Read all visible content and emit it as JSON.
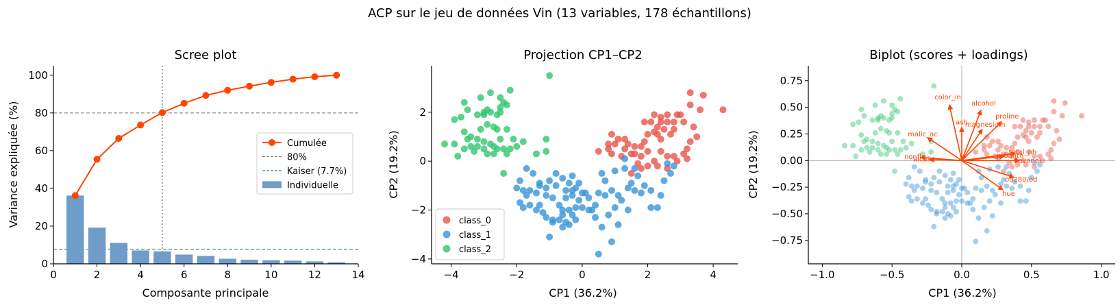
{
  "suptitle": "ACP sur le jeu de données Vin (13 variables, 178 échantillons)",
  "colors": {
    "cumul": "#FF4500",
    "bar": "#6F9CC8",
    "threshold": "#808080",
    "kaiser": "#2E8B57",
    "class_0": "#E8554A",
    "class_1": "#3A95D8",
    "class_2": "#33C56F",
    "arrow": "#FF4500"
  },
  "chart_data": [
    {
      "type": "bar",
      "title": "Scree plot",
      "xlabel": "Composante principale",
      "ylabel": "Variance expliquée (%)",
      "xlim": [
        0,
        14
      ],
      "ylim": [
        0,
        105
      ],
      "xticks": [
        "0",
        "2",
        "4",
        "6",
        "8",
        "10",
        "12",
        "14"
      ],
      "yticks": [
        "0",
        "20",
        "40",
        "60",
        "80",
        "100"
      ],
      "categories": [
        1,
        2,
        3,
        4,
        5,
        6,
        7,
        8,
        9,
        10,
        11,
        12,
        13
      ],
      "series": [
        {
          "name": "Individuelle",
          "kind": "bar",
          "values": [
            36.2,
            19.2,
            11.1,
            7.1,
            6.6,
            4.9,
            4.2,
            2.7,
            2.2,
            1.9,
            1.7,
            1.3,
            0.8
          ]
        },
        {
          "name": "Cumulée",
          "kind": "line",
          "values": [
            36.2,
            55.4,
            66.5,
            73.6,
            80.2,
            85.1,
            89.3,
            92.0,
            94.2,
            96.2,
            97.9,
            99.2,
            100.0
          ]
        }
      ],
      "hlines": [
        {
          "name": "80%",
          "y": 80
        },
        {
          "name": "Kaiser (7.7%)",
          "y": 7.7
        }
      ],
      "vline": {
        "x": 5
      },
      "legend": {
        "position": "center-right",
        "entries": [
          "Cumulée",
          "80%",
          "Kaiser (7.7%)",
          "Individuelle"
        ]
      }
    },
    {
      "type": "scatter",
      "title": "Projection CP1–CP2",
      "xlabel": "CP1 (36.2%)",
      "ylabel": "CP2 (19.2%)",
      "xlim": [
        -4.6,
        4.75
      ],
      "ylim": [
        -4.2,
        3.9
      ],
      "xticks": [
        "−4",
        "−2",
        "0",
        "2",
        "4"
      ],
      "yticks": [
        "−4",
        "−2",
        "0",
        "2"
      ],
      "legend": {
        "position": "lower-left",
        "entries": [
          "class_0",
          "class_1",
          "class_2"
        ]
      },
      "series": [
        {
          "name": "class_0",
          "points": [
            [
              3.3,
              2.8
            ],
            [
              3.7,
              2.7
            ],
            [
              4.3,
              2.1
            ],
            [
              3.6,
              2.1
            ],
            [
              3.3,
              2.3
            ],
            [
              3.0,
              1.9
            ],
            [
              3.1,
              1.6
            ],
            [
              2.9,
              1.9
            ],
            [
              2.6,
              1.9
            ],
            [
              2.6,
              1.6
            ],
            [
              2.4,
              1.8
            ],
            [
              2.2,
              1.9
            ],
            [
              2.1,
              1.6
            ],
            [
              1.9,
              1.6
            ],
            [
              2.3,
              1.4
            ],
            [
              2.5,
              1.3
            ],
            [
              2.7,
              1.1
            ],
            [
              2.8,
              1.3
            ],
            [
              3.4,
              1.4
            ],
            [
              3.5,
              1.0
            ],
            [
              3.3,
              0.8
            ],
            [
              3.2,
              0.5
            ],
            [
              3.1,
              0.3
            ],
            [
              3.2,
              0.1
            ],
            [
              2.8,
              0.2
            ],
            [
              2.6,
              0.2
            ],
            [
              2.4,
              0.4
            ],
            [
              2.4,
              0.9
            ],
            [
              2.2,
              1.2
            ],
            [
              2.0,
              1.1
            ],
            [
              1.9,
              0.8
            ],
            [
              1.8,
              0.6
            ],
            [
              1.8,
              0.2
            ],
            [
              1.6,
              0.6
            ],
            [
              1.4,
              0.7
            ],
            [
              1.3,
              0.9
            ],
            [
              1.1,
              0.9
            ],
            [
              1.0,
              0.7
            ],
            [
              0.9,
              1.1
            ],
            [
              0.8,
              0.7
            ],
            [
              0.8,
              0.5
            ],
            [
              0.5,
              0.4
            ],
            [
              1.3,
              0.5
            ],
            [
              1.5,
              0.3
            ],
            [
              1.7,
              -0.1
            ],
            [
              2.0,
              -0.2
            ],
            [
              2.2,
              0.0
            ],
            [
              2.3,
              -0.2
            ],
            [
              2.6,
              -0.3
            ],
            [
              2.9,
              0.0
            ],
            [
              2.0,
              0.4
            ],
            [
              2.3,
              1.1
            ],
            [
              2.8,
              1.6
            ],
            [
              2.4,
              1.6
            ],
            [
              1.6,
              0.3
            ],
            [
              1.2,
              0.2
            ],
            [
              0.9,
              0.3
            ],
            [
              1.5,
              -0.5
            ],
            [
              1.8,
              -0.3
            ]
          ]
        },
        {
          "name": "class_1",
          "points": [
            [
              -1.0,
              -0.8
            ],
            [
              -0.8,
              -0.5
            ],
            [
              -0.6,
              -0.7
            ],
            [
              -0.4,
              -0.9
            ],
            [
              -0.2,
              -1.1
            ],
            [
              -0.3,
              -1.2
            ],
            [
              -0.5,
              -1.2
            ],
            [
              -0.8,
              -1.0
            ],
            [
              -1.1,
              -1.1
            ],
            [
              -1.3,
              -1.0
            ],
            [
              -1.4,
              -1.3
            ],
            [
              -1.6,
              -1.2
            ],
            [
              -1.7,
              -1.4
            ],
            [
              -1.8,
              -1.2
            ],
            [
              -1.9,
              -0.8
            ],
            [
              -2.0,
              -1.1
            ],
            [
              -1.9,
              -1.7
            ],
            [
              -1.8,
              -1.9
            ],
            [
              -1.6,
              -1.8
            ],
            [
              -1.4,
              -2.0
            ],
            [
              -1.3,
              -1.8
            ],
            [
              -1.2,
              -2.1
            ],
            [
              -1.1,
              -2.3
            ],
            [
              -0.9,
              -2.4
            ],
            [
              -0.7,
              -2.4
            ],
            [
              -0.5,
              -2.5
            ],
            [
              -0.6,
              -2.7
            ],
            [
              -0.4,
              -2.6
            ],
            [
              -0.3,
              -2.2
            ],
            [
              -0.2,
              -1.9
            ],
            [
              0.0,
              -1.9
            ],
            [
              0.2,
              -2.0
            ],
            [
              0.4,
              -1.8
            ],
            [
              0.5,
              -1.3
            ],
            [
              0.7,
              -1.4
            ],
            [
              0.9,
              -1.2
            ],
            [
              1.1,
              -1.4
            ],
            [
              1.2,
              -1.6
            ],
            [
              1.0,
              -1.9
            ],
            [
              0.8,
              -2.2
            ],
            [
              1.1,
              -2.6
            ],
            [
              0.9,
              -3.3
            ],
            [
              0.5,
              -3.8
            ],
            [
              0.3,
              -2.0
            ],
            [
              0.1,
              -1.3
            ],
            [
              -0.3,
              -0.6
            ],
            [
              -1.0,
              -3.1
            ],
            [
              -0.9,
              -2.5
            ],
            [
              -0.6,
              -2.2
            ],
            [
              -0.4,
              -2.0
            ],
            [
              -0.6,
              -2.0
            ],
            [
              -0.7,
              -1.8
            ],
            [
              -0.5,
              -1.5
            ],
            [
              -0.9,
              -1.5
            ],
            [
              1.4,
              -1.1
            ],
            [
              1.6,
              -1.2
            ],
            [
              1.8,
              -1.3
            ],
            [
              1.5,
              -0.9
            ],
            [
              1.7,
              -0.6
            ],
            [
              1.9,
              -1.0
            ],
            [
              2.1,
              -1.2
            ],
            [
              2.4,
              -1.4
            ],
            [
              2.5,
              -0.8
            ],
            [
              2.7,
              -0.5
            ],
            [
              2.6,
              -0.1
            ],
            [
              2.8,
              -0.2
            ],
            [
              2.1,
              -1.9
            ],
            [
              2.3,
              -1.9
            ],
            [
              1.4,
              -2.0
            ],
            [
              1.0,
              -0.4
            ],
            [
              1.3,
              -0.3
            ],
            [
              1.6,
              -0.3
            ],
            [
              -1.7,
              -0.3
            ],
            [
              -1.5,
              -0.5
            ],
            [
              -1.3,
              -0.9
            ],
            [
              -0.1,
              -1.6
            ],
            [
              0.2,
              -1.5
            ],
            [
              0.4,
              -2.3
            ],
            [
              -0.2,
              -2.4
            ],
            [
              0.6,
              -2.7
            ],
            [
              -0.3,
              -1.4
            ],
            [
              0.0,
              -1.3
            ],
            [
              0.7,
              -0.8
            ],
            [
              1.3,
              0.1
            ],
            [
              0.6,
              -0.5
            ],
            [
              -0.1,
              -0.9
            ],
            [
              -1.1,
              -1.4
            ]
          ]
        },
        {
          "name": "class_2",
          "points": [
            [
              -3.1,
              2.6
            ],
            [
              -2.8,
              2.8
            ],
            [
              -2.5,
              2.6
            ],
            [
              -2.2,
              2.9
            ],
            [
              -2.4,
              2.4
            ],
            [
              -2.3,
              2.3
            ],
            [
              -2.5,
              2.2
            ],
            [
              -2.6,
              1.9
            ],
            [
              -2.8,
              2.0
            ],
            [
              -2.9,
              2.1
            ],
            [
              -3.0,
              1.9
            ],
            [
              -3.2,
              1.9
            ],
            [
              -3.5,
              2.1
            ],
            [
              -3.6,
              2.4
            ],
            [
              -3.7,
              1.8
            ],
            [
              -3.9,
              1.7
            ],
            [
              -3.6,
              1.2
            ],
            [
              -3.4,
              1.0
            ],
            [
              -3.1,
              1.3
            ],
            [
              -2.9,
              1.5
            ],
            [
              -2.6,
              1.3
            ],
            [
              -2.3,
              1.3
            ],
            [
              -2.5,
              0.9
            ],
            [
              -2.8,
              0.7
            ],
            [
              -3.0,
              0.8
            ],
            [
              -3.2,
              0.6
            ],
            [
              -3.4,
              0.6
            ],
            [
              -3.6,
              0.5
            ],
            [
              -3.9,
              0.7
            ],
            [
              -4.2,
              0.7
            ],
            [
              -3.8,
              0.2
            ],
            [
              -3.3,
              0.4
            ],
            [
              -3.0,
              0.5
            ],
            [
              -2.7,
              0.3
            ],
            [
              -2.4,
              0.5
            ],
            [
              -2.3,
              0.3
            ],
            [
              -2.1,
              0.9
            ],
            [
              -2.2,
              0.5
            ],
            [
              -2.7,
              0.6
            ],
            [
              -2.0,
              0.6
            ],
            [
              -1.8,
              0.8
            ],
            [
              -1.4,
              0.3
            ],
            [
              -1.1,
              0.4
            ],
            [
              -1.1,
              0.9
            ],
            [
              -1.0,
              3.5
            ],
            [
              -2.4,
              -0.5
            ],
            [
              -3.2,
              0.9
            ],
            [
              -2.5,
              2.0
            ],
            [
              -3.0,
              2.0
            ],
            [
              -2.7,
              1.4
            ],
            [
              -3.5,
              0.9
            ],
            [
              -2.6,
              0.5
            ],
            [
              -2.9,
              0.3
            ]
          ]
        }
      ]
    },
    {
      "type": "scatter",
      "title": "Biplot (scores + loadings)",
      "xlabel": "CP1 (36.2%)",
      "ylabel": "CP2 (19.2%)",
      "xlim": [
        -1.1,
        1.1
      ],
      "ylim": [
        -0.97,
        0.89
      ],
      "xticks": [
        "−1.0",
        "−0.5",
        "0.0",
        "0.5",
        "1.0"
      ],
      "yticks": [
        "−0.75",
        "−0.50",
        "−0.25",
        "0.00",
        "0.25",
        "0.50",
        "0.75"
      ],
      "scores_scale": 0.2,
      "loadings": [
        {
          "name": "color_in",
          "x": -0.09,
          "y": 0.53
        },
        {
          "name": "alcohol",
          "x": 0.14,
          "y": 0.48
        },
        {
          "name": "proline",
          "x": 0.29,
          "y": 0.37
        },
        {
          "name": "magnesium",
          "x": 0.15,
          "y": 0.3
        },
        {
          "name": "ash",
          "x": 0.0,
          "y": 0.32
        },
        {
          "name": "malic_ac",
          "x": -0.25,
          "y": 0.22
        },
        {
          "name": "nonfla",
          "x": -0.3,
          "y": 0.03
        },
        {
          "name": "alcalin",
          "x": -0.24,
          "y": 0.01
        },
        {
          "name": "total_ph",
          "x": 0.39,
          "y": 0.07
        },
        {
          "name": "flavanoi",
          "x": 0.42,
          "y": 0.0
        },
        {
          "name": "proanth",
          "x": 0.31,
          "y": 0.04
        },
        {
          "name": "od280/od",
          "x": 0.38,
          "y": -0.16
        },
        {
          "name": "hue",
          "x": 0.3,
          "y": -0.28
        }
      ]
    }
  ]
}
